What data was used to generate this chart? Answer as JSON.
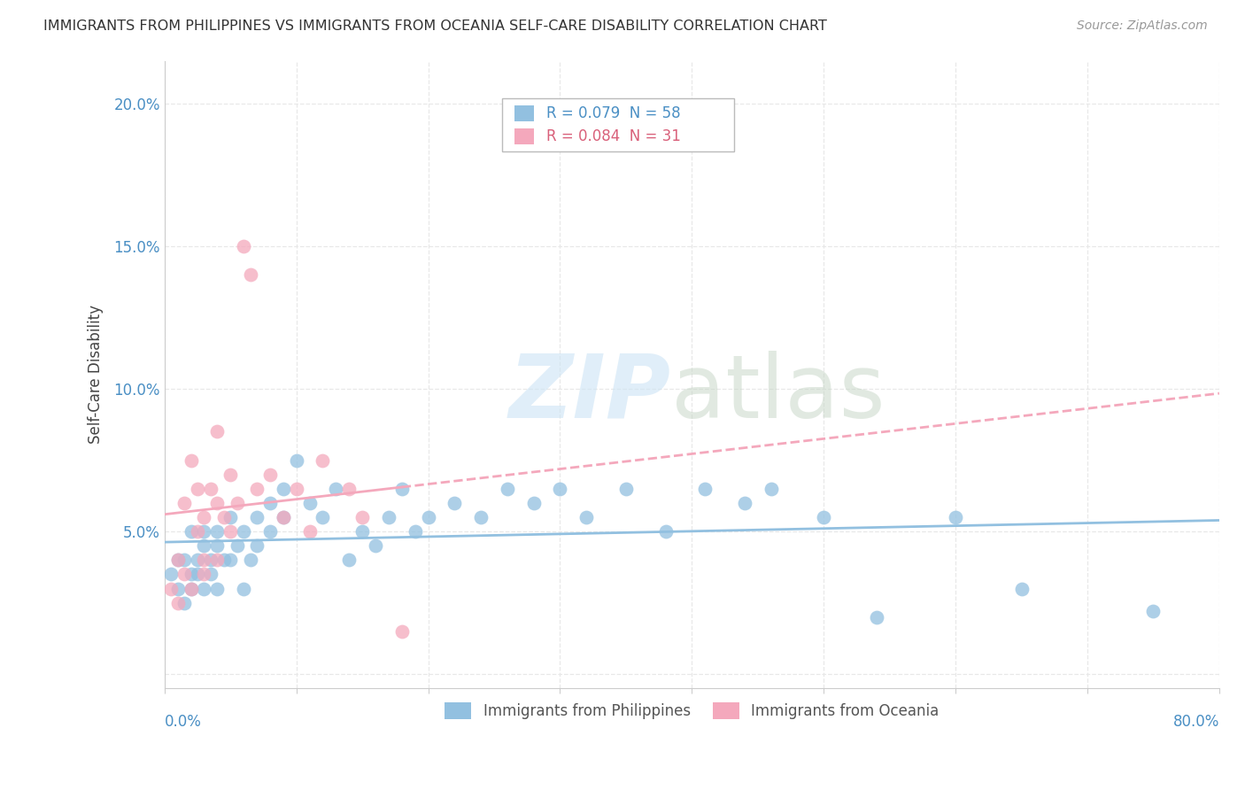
{
  "title": "IMMIGRANTS FROM PHILIPPINES VS IMMIGRANTS FROM OCEANIA SELF-CARE DISABILITY CORRELATION CHART",
  "source": "Source: ZipAtlas.com",
  "ylabel": "Self-Care Disability",
  "xlim": [
    0.0,
    0.8
  ],
  "ylim": [
    -0.005,
    0.215
  ],
  "yticks": [
    0.0,
    0.05,
    0.1,
    0.15,
    0.2
  ],
  "ytick_labels": [
    "",
    "5.0%",
    "10.0%",
    "15.0%",
    "20.0%"
  ],
  "color_blue": "#92c0e0",
  "color_pink": "#f4a8bc",
  "color_blue_text": "#4a8fc4",
  "color_pink_text": "#d9607a",
  "color_grid": "#e8e8e8",
  "philippines_x": [
    0.005,
    0.01,
    0.01,
    0.015,
    0.015,
    0.02,
    0.02,
    0.02,
    0.025,
    0.025,
    0.03,
    0.03,
    0.03,
    0.035,
    0.035,
    0.04,
    0.04,
    0.04,
    0.045,
    0.05,
    0.05,
    0.055,
    0.06,
    0.06,
    0.065,
    0.07,
    0.07,
    0.08,
    0.08,
    0.09,
    0.09,
    0.1,
    0.11,
    0.12,
    0.13,
    0.14,
    0.15,
    0.16,
    0.17,
    0.18,
    0.19,
    0.2,
    0.22,
    0.24,
    0.26,
    0.28,
    0.3,
    0.32,
    0.35,
    0.38,
    0.41,
    0.44,
    0.46,
    0.5,
    0.54,
    0.6,
    0.65,
    0.75
  ],
  "philippines_y": [
    0.035,
    0.03,
    0.04,
    0.025,
    0.04,
    0.035,
    0.05,
    0.03,
    0.04,
    0.035,
    0.03,
    0.045,
    0.05,
    0.04,
    0.035,
    0.045,
    0.05,
    0.03,
    0.04,
    0.04,
    0.055,
    0.045,
    0.03,
    0.05,
    0.04,
    0.045,
    0.055,
    0.05,
    0.06,
    0.055,
    0.065,
    0.075,
    0.06,
    0.055,
    0.065,
    0.04,
    0.05,
    0.045,
    0.055,
    0.065,
    0.05,
    0.055,
    0.06,
    0.055,
    0.065,
    0.06,
    0.065,
    0.055,
    0.065,
    0.05,
    0.065,
    0.06,
    0.065,
    0.055,
    0.02,
    0.055,
    0.03,
    0.022
  ],
  "oceania_x": [
    0.005,
    0.01,
    0.01,
    0.015,
    0.015,
    0.02,
    0.02,
    0.025,
    0.025,
    0.03,
    0.03,
    0.03,
    0.035,
    0.04,
    0.04,
    0.04,
    0.045,
    0.05,
    0.05,
    0.055,
    0.06,
    0.065,
    0.07,
    0.08,
    0.09,
    0.1,
    0.11,
    0.12,
    0.14,
    0.15,
    0.18
  ],
  "oceania_y": [
    0.03,
    0.025,
    0.04,
    0.035,
    0.06,
    0.03,
    0.075,
    0.05,
    0.065,
    0.035,
    0.055,
    0.04,
    0.065,
    0.04,
    0.06,
    0.085,
    0.055,
    0.05,
    0.07,
    0.06,
    0.15,
    0.14,
    0.065,
    0.07,
    0.055,
    0.065,
    0.05,
    0.075,
    0.065,
    0.055,
    0.015
  ]
}
